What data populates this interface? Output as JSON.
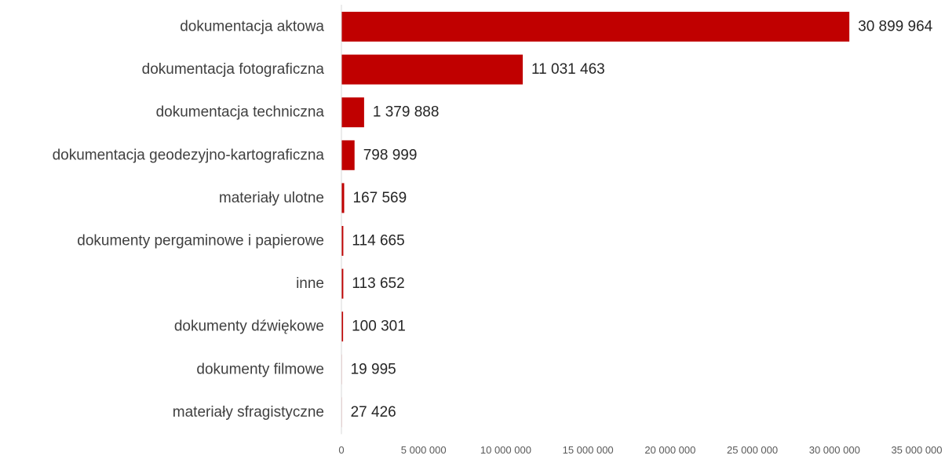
{
  "chart_data": {
    "type": "bar",
    "orientation": "horizontal",
    "title": "",
    "xlabel": "",
    "ylabel": "",
    "categories": [
      "dokumentacja aktowa",
      "dokumentacja fotograficzna",
      "dokumentacja techniczna",
      "dokumentacja geodezyjno-kartograficzna",
      "materiały ulotne",
      "dokumenty pergaminowe i papierowe",
      "inne",
      "dokumenty dźwiękowe",
      "dokumenty filmowe",
      "materiały sfragistyczne"
    ],
    "values": [
      30899964,
      11031463,
      1379888,
      798999,
      167569,
      114665,
      113652,
      100301,
      19995,
      27426
    ],
    "data_labels": [
      "30 899 964",
      "11 031 463",
      "1 379 888",
      "798 999",
      "167 569",
      "114 665",
      "113 652",
      "100 301",
      "19 995",
      "27 426"
    ],
    "xlim": [
      0,
      35000000
    ],
    "x_ticks": [
      0,
      5000000,
      10000000,
      15000000,
      20000000,
      25000000,
      30000000,
      35000000
    ],
    "x_tick_labels": [
      "0",
      "5 000 000",
      "10 000 000",
      "15 000 000",
      "20 000 000",
      "25 000 000",
      "30 000 000",
      "35 000 000"
    ],
    "grid": false,
    "legend": "none",
    "bar_color": "#c00000"
  }
}
